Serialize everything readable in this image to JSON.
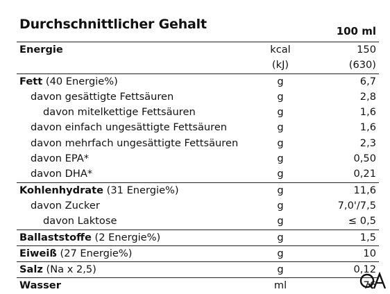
{
  "title": "Durchschnittlicher Gehalt",
  "column_header": "100 ml",
  "rows": [
    {
      "bold": "Energie",
      "rest": "",
      "unit": "kcal",
      "value": "150",
      "indent": 0,
      "sep": true
    },
    {
      "bold": "",
      "rest": "",
      "unit": "(kJ)",
      "value": "(630)",
      "indent": 0,
      "sep": false
    },
    {
      "bold": "Fett",
      "rest": " (40 Energie%)",
      "unit": "g",
      "value": "6,7",
      "indent": 0,
      "sep": true
    },
    {
      "bold": "",
      "rest": "davon gesättigte Fettsäuren",
      "unit": "g",
      "value": "2,8",
      "indent": 1,
      "sep": false
    },
    {
      "bold": "",
      "rest": "davon mitelkettige Fettsäuren",
      "unit": "g",
      "value": "1,6",
      "indent": 2,
      "sep": false
    },
    {
      "bold": "",
      "rest": "davon einfach ungesättigte Fettsäuren",
      "unit": "g",
      "value": "1,6",
      "indent": 1,
      "sep": false
    },
    {
      "bold": "",
      "rest": "davon mehrfach ungesättigte Fettsäuren",
      "unit": "g",
      "value": "2,3",
      "indent": 1,
      "sep": false
    },
    {
      "bold": "",
      "rest": "davon EPA*",
      "unit": "g",
      "value": "0,50",
      "indent": 1,
      "sep": false
    },
    {
      "bold": "",
      "rest": "davon DHA*",
      "unit": "g",
      "value": "0,21",
      "indent": 1,
      "sep": false
    },
    {
      "bold": "Kohlenhydrate",
      "rest": " (31 Energie%)",
      "unit": "g",
      "value": "11,6",
      "indent": 0,
      "sep": true
    },
    {
      "bold": "",
      "rest": "davon Zucker",
      "unit": "g",
      "value": "7,0'/7,5",
      "indent": 1,
      "sep": false
    },
    {
      "bold": "",
      "rest": "davon Laktose",
      "unit": "g",
      "value": "≤ 0,5",
      "indent": 2,
      "sep": false
    },
    {
      "bold": "Ballaststoffe",
      "rest": " (2 Energie%)",
      "unit": "g",
      "value": "1,5",
      "indent": 0,
      "sep": true
    },
    {
      "bold": "Eiweiß",
      "rest": " (27 Energie%)",
      "unit": "g",
      "value": "10",
      "indent": 0,
      "sep": true
    },
    {
      "bold": "Salz",
      "rest": " (Na x 2,5)",
      "unit": "g",
      "value": "0,12",
      "indent": 0,
      "sep": true
    },
    {
      "bold": "Wasser",
      "rest": "",
      "unit": "ml",
      "value": "76",
      "indent": 0,
      "sep": true
    }
  ],
  "watermark": {
    "text": "QA",
    "icon": "qa-logo-icon",
    "color": "#111111"
  }
}
